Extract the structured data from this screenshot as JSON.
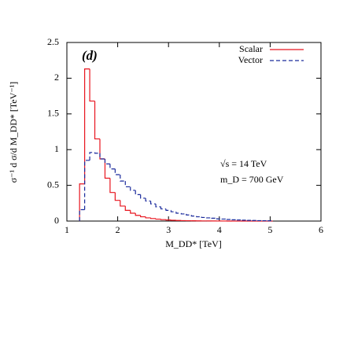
{
  "chart_data": {
    "type": "histogram",
    "annotations": [
      "(d)",
      "√s = 14 TeV",
      "m_D = 700 GeV"
    ],
    "xlabel": "M_DD* [TeV]",
    "ylabel": "σ⁻¹ d σ/d M_DD* [TeV⁻¹]",
    "bins": [
      1.25,
      1.35,
      1.45,
      1.55,
      1.65,
      1.75,
      1.85,
      1.95,
      2.05,
      2.15,
      2.25,
      2.35,
      2.45,
      2.55,
      2.65,
      2.75,
      2.85,
      2.95,
      3.05,
      3.15,
      3.25,
      3.35,
      3.45,
      3.55,
      3.65,
      3.75,
      3.85,
      3.95,
      4.05,
      4.15,
      4.25,
      4.35,
      4.45,
      4.55,
      4.65,
      4.75,
      4.85,
      4.95,
      5.05
    ],
    "series": [
      {
        "name": "Scalar",
        "color": "#e8141e",
        "dash": false,
        "values": [
          0.52,
          2.13,
          1.68,
          1.15,
          0.87,
          0.6,
          0.4,
          0.29,
          0.21,
          0.15,
          0.11,
          0.08,
          0.06,
          0.045,
          0.035,
          0.027,
          0.02,
          0.015,
          0.011,
          0.008,
          0.006,
          0.005,
          0.004,
          0.003,
          0.002,
          0.002,
          0.001,
          0.001,
          0.001,
          0,
          0,
          0,
          0,
          0,
          0,
          0,
          0,
          0
        ]
      },
      {
        "name": "Vector",
        "color": "#1a2a9c",
        "dash": true,
        "values": [
          0.16,
          0.85,
          0.96,
          0.95,
          0.87,
          0.8,
          0.73,
          0.65,
          0.56,
          0.48,
          0.43,
          0.37,
          0.32,
          0.28,
          0.24,
          0.2,
          0.17,
          0.15,
          0.13,
          0.11,
          0.1,
          0.085,
          0.07,
          0.06,
          0.05,
          0.045,
          0.04,
          0.03,
          0.028,
          0.022,
          0.018,
          0.015,
          0.012,
          0.01,
          0.008,
          0.006,
          0.005,
          0.004
        ]
      }
    ],
    "xlim": [
      1,
      6
    ],
    "xticks": [
      1,
      2,
      3,
      4,
      5,
      6
    ],
    "ylim": [
      0,
      2.5
    ],
    "yticks": [
      0,
      0.5,
      1,
      1.5,
      2,
      2.5
    ],
    "legend": "top-right"
  }
}
